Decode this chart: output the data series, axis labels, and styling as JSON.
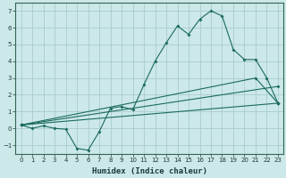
{
  "xlabel": "Humidex (Indice chaleur)",
  "ylabel": "",
  "background_color": "#cce8e8",
  "grid_color": "#aacccc",
  "line_color": "#1a6b5a",
  "xlim": [
    -0.5,
    23.5
  ],
  "ylim": [
    -1.5,
    7.5
  ],
  "xticks": [
    0,
    1,
    2,
    3,
    4,
    5,
    6,
    7,
    8,
    9,
    10,
    11,
    12,
    13,
    14,
    15,
    16,
    17,
    18,
    19,
    20,
    21,
    22,
    23
  ],
  "yticks": [
    -1,
    0,
    1,
    2,
    3,
    4,
    5,
    6,
    7
  ],
  "line1_x": [
    0,
    1,
    2,
    3,
    4,
    5,
    6,
    7,
    8,
    9,
    10,
    11,
    12,
    13,
    14,
    15,
    16,
    17,
    18,
    19,
    20,
    21,
    22,
    23
  ],
  "line1_y": [
    0.2,
    0.0,
    0.15,
    0.0,
    -0.05,
    -1.2,
    -1.3,
    -0.2,
    1.2,
    1.3,
    1.1,
    2.6,
    4.0,
    5.1,
    6.1,
    5.6,
    6.5,
    7.0,
    6.7,
    4.7,
    4.1,
    4.1,
    3.0,
    1.5
  ],
  "line2_x": [
    0,
    23
  ],
  "line2_y": [
    0.2,
    1.5
  ],
  "line3_x": [
    0,
    23
  ],
  "line3_y": [
    0.2,
    2.5
  ],
  "line4_x": [
    0,
    21,
    23
  ],
  "line4_y": [
    0.2,
    3.0,
    1.5
  ],
  "tick_fontsize": 5,
  "xlabel_fontsize": 6.5,
  "marker_size": 2.0,
  "line_width": 0.8
}
